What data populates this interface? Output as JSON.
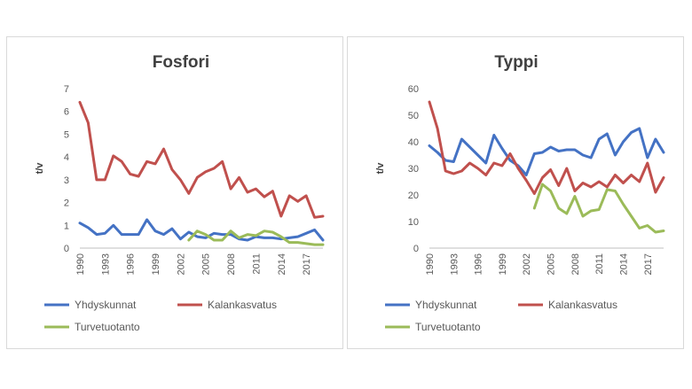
{
  "chart_data": [
    {
      "type": "line",
      "title": "Fosfori",
      "xlabel": "",
      "ylabel": "t/v",
      "ylim": [
        0,
        7
      ],
      "yticks": [
        "0",
        "1",
        "2",
        "3",
        "4",
        "5",
        "6",
        "7"
      ],
      "x_tick_labels": [
        "1990",
        "1993",
        "1996",
        "1999",
        "2002",
        "2005",
        "2008",
        "2011",
        "2014",
        "2017"
      ],
      "x": [
        1990,
        1991,
        1992,
        1993,
        1994,
        1995,
        1996,
        1997,
        1998,
        1999,
        2000,
        2001,
        2002,
        2003,
        2004,
        2005,
        2006,
        2007,
        2008,
        2009,
        2010,
        2011,
        2012,
        2013,
        2014,
        2015,
        2016,
        2017,
        2018,
        2019
      ],
      "legend_position": "bottom",
      "grid": false,
      "series": [
        {
          "name": "Yhdyskunnat",
          "color": "#4472c4",
          "values": [
            1.1,
            0.9,
            0.6,
            0.65,
            1.0,
            0.6,
            0.6,
            0.6,
            1.25,
            0.75,
            0.6,
            0.85,
            0.4,
            0.7,
            0.5,
            0.45,
            0.65,
            0.6,
            0.6,
            0.4,
            0.35,
            0.5,
            0.45,
            0.45,
            0.4,
            0.45,
            0.5,
            0.65,
            0.8,
            0.35
          ]
        },
        {
          "name": "Kalankasvatus",
          "color": "#c0504d",
          "values": [
            6.4,
            5.5,
            3.0,
            3.0,
            4.05,
            3.8,
            3.25,
            3.15,
            3.8,
            3.7,
            4.35,
            3.45,
            3.0,
            2.4,
            3.1,
            3.35,
            3.5,
            3.8,
            2.6,
            3.1,
            2.45,
            2.6,
            2.25,
            2.5,
            1.4,
            2.3,
            2.05,
            2.3,
            1.35,
            1.4
          ]
        },
        {
          "name": "Turvetuotanto",
          "color": "#9bbb59",
          "values": [
            null,
            null,
            null,
            null,
            null,
            null,
            null,
            null,
            null,
            null,
            null,
            null,
            null,
            0.35,
            0.75,
            0.6,
            0.35,
            0.35,
            0.75,
            0.45,
            0.6,
            0.55,
            0.75,
            0.7,
            0.5,
            0.25,
            0.25,
            0.2,
            0.15,
            0.15
          ]
        }
      ]
    },
    {
      "type": "line",
      "title": "Typpi",
      "xlabel": "",
      "ylabel": "t/v",
      "ylim": [
        0,
        60
      ],
      "yticks": [
        "0",
        "10",
        "20",
        "30",
        "40",
        "50",
        "60"
      ],
      "x_tick_labels": [
        "1990",
        "1993",
        "1996",
        "1999",
        "2002",
        "2005",
        "2008",
        "2011",
        "2014",
        "2017"
      ],
      "x": [
        1990,
        1991,
        1992,
        1993,
        1994,
        1995,
        1996,
        1997,
        1998,
        1999,
        2000,
        2001,
        2002,
        2003,
        2004,
        2005,
        2006,
        2007,
        2008,
        2009,
        2010,
        2011,
        2012,
        2013,
        2014,
        2015,
        2016,
        2017,
        2018,
        2019
      ],
      "legend_position": "bottom",
      "grid": false,
      "series": [
        {
          "name": "Yhdyskunnat",
          "color": "#4472c4",
          "values": [
            38.5,
            36,
            33,
            32.5,
            41,
            38,
            35,
            32,
            42.5,
            37.5,
            33,
            31,
            27.5,
            35.5,
            36,
            38,
            36.5,
            37,
            37,
            35,
            34,
            41,
            43,
            35,
            40,
            43.5,
            45,
            34,
            41,
            36
          ]
        },
        {
          "name": "Kalankasvatus",
          "color": "#c0504d",
          "values": [
            55,
            45,
            29,
            28,
            29,
            32,
            30,
            27.5,
            32,
            31,
            35.5,
            30,
            25.5,
            20.5,
            26.5,
            29.5,
            23.5,
            30,
            21.5,
            24.5,
            23,
            25,
            23,
            27.5,
            24.5,
            27.5,
            25,
            32,
            21,
            26.5
          ]
        },
        {
          "name": "Turvetuotanto",
          "color": "#9bbb59",
          "values": [
            null,
            null,
            null,
            null,
            null,
            null,
            null,
            null,
            null,
            null,
            null,
            null,
            null,
            15,
            24,
            21.5,
            15,
            13,
            19.5,
            12,
            14,
            14.5,
            22,
            21.5,
            16.5,
            12,
            7.5,
            8.5,
            6,
            6.5
          ]
        }
      ]
    }
  ]
}
